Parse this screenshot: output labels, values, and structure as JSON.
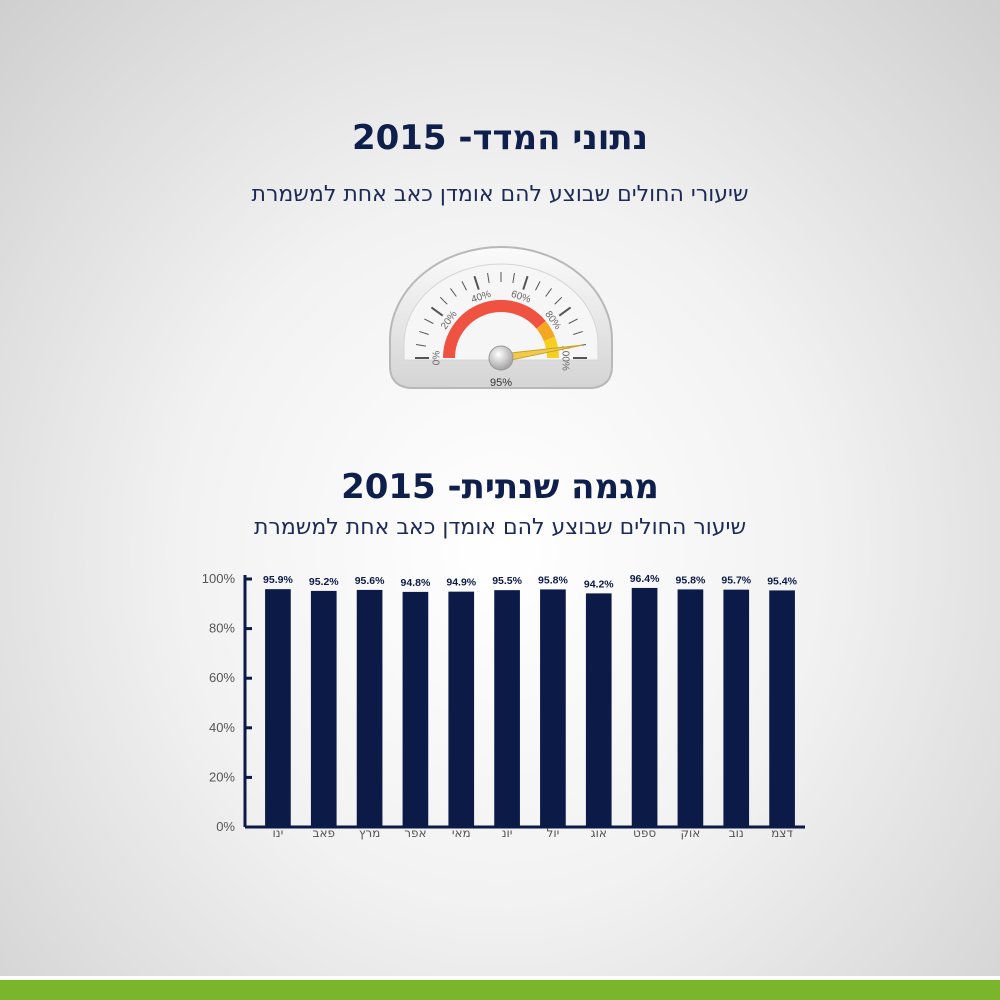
{
  "gauge_section": {
    "title": "נתוני המדד- 2015",
    "subtitle": "שיעורי החולים שבוצע להם אומדן כאב אחת למשמרת",
    "gauge": {
      "value": 95,
      "value_label": "95%",
      "min": 0,
      "max": 100,
      "tick_labels": [
        "0%",
        "20%",
        "40%",
        "60%",
        "80%",
        "100%"
      ],
      "band_colors": {
        "low": "#ef5240",
        "mid": "#f5a623",
        "high": "#f5d020"
      },
      "needle_color": "#f2c94c"
    }
  },
  "chart_section": {
    "title": "מגמה שנתית- 2015",
    "subtitle": "שיעור החולים שבוצע להם אומדן כאב אחת למשמרת"
  },
  "chart_data": {
    "type": "bar",
    "categories": [
      "ינו",
      "פאב",
      "מרץ",
      "אפר",
      "מאי",
      "יונ",
      "יול",
      "אוג",
      "ספט",
      "אוק",
      "נוב",
      "דצמ"
    ],
    "values": [
      95.9,
      95.2,
      95.6,
      94.8,
      94.9,
      95.5,
      95.8,
      94.2,
      96.4,
      95.8,
      95.7,
      95.4
    ],
    "data_labels": [
      "95.9%",
      "95.2%",
      "95.6%",
      "94.8%",
      "94.9%",
      "95.5%",
      "95.8%",
      "94.2%",
      "96.4%",
      "95.8%",
      "95.7%",
      "95.4%"
    ],
    "yticks": [
      "0%",
      "20%",
      "40%",
      "60%",
      "80%",
      "100%"
    ],
    "ylim": [
      0,
      100
    ],
    "bar_color": "#0b1a46",
    "grid": false
  }
}
